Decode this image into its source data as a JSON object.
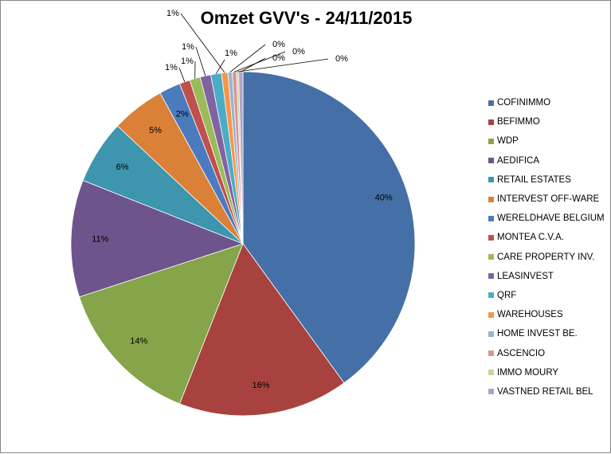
{
  "chart_data": {
    "type": "pie",
    "title": "Omzet GVV's - 24/11/2015",
    "categories": [
      "COFINIMMO",
      "BEFIMMO",
      "WDP",
      "AEDIFICA",
      "RETAIL ESTATES",
      "INTERVEST OFF-WARE",
      "WERELDHAVE BELGIUM",
      "MONTEA C.V.A.",
      "CARE PROPERTY INV.",
      "LEASINVEST",
      "QRF",
      "WAREHOUSES",
      "HOME INVEST BE.",
      "ASCENCIO",
      "IMMO MOURY",
      "VASTNED RETAIL BEL"
    ],
    "values": [
      40,
      16,
      14,
      11,
      6,
      5,
      2,
      1,
      1,
      1,
      1,
      0.6,
      0.4,
      0.4,
      0.2,
      0.4
    ],
    "labels": [
      "40%",
      "16%",
      "14%",
      "11%",
      "6%",
      "5%",
      "2%",
      "1%",
      "1%",
      "1%",
      "1%",
      "1%",
      "0%",
      "0%",
      "0%",
      "0%"
    ],
    "colors": [
      "#4470A7",
      "#A8423F",
      "#86A44A",
      "#6E548D",
      "#3D96AE",
      "#DA8137",
      "#4B7BBE",
      "#C0504D",
      "#9BBB59",
      "#8064A2",
      "#4BACC6",
      "#F79646",
      "#95B3D7",
      "#D99694",
      "#C3D69B",
      "#B3A2C7"
    ],
    "legend_position": "right"
  }
}
